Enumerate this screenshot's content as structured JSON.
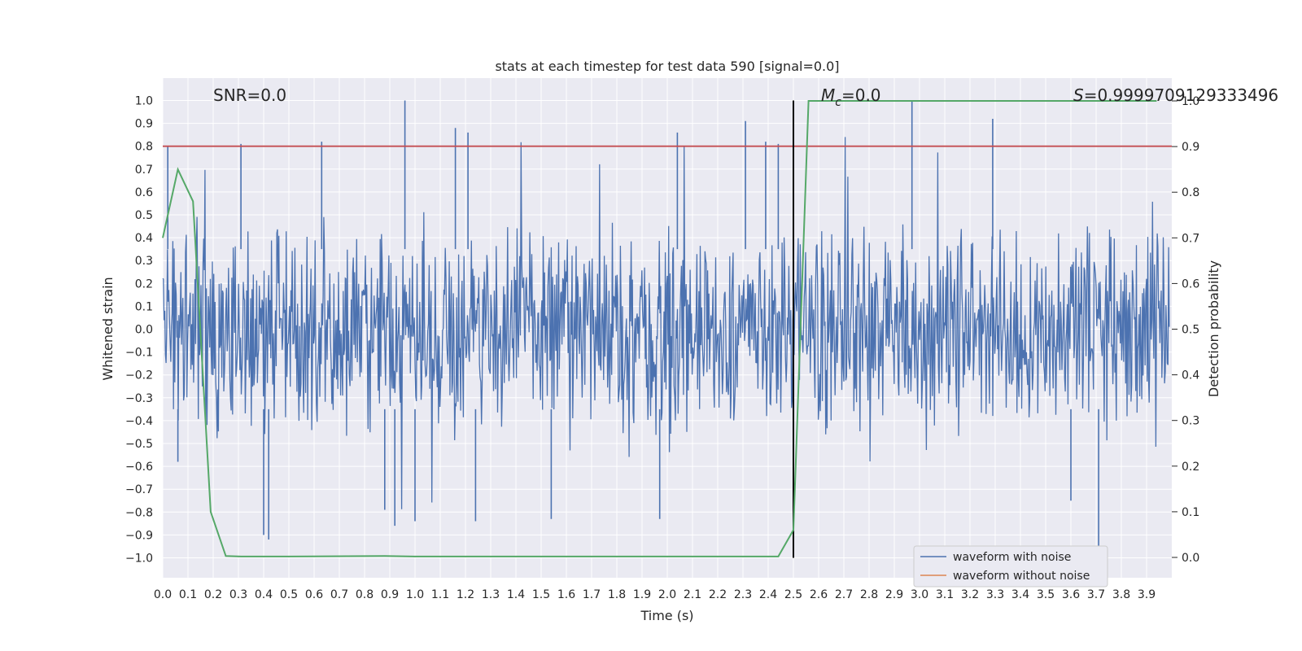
{
  "chart_data": {
    "type": "line",
    "title": "stats at each timestep for test data 590 [signal=0.0]",
    "xlabel": "Time (s)",
    "ylabel_left": "Whitened strain",
    "ylabel_right": "Detection probability",
    "xlim": [
      0.0,
      3.99
    ],
    "ylim_left": [
      -1.1,
      1.1
    ],
    "ylim_right": [
      -0.05,
      1.05
    ],
    "x_ticks": [
      "0.0",
      "0.1",
      "0.2",
      "0.3",
      "0.4",
      "0.5",
      "0.6",
      "0.7",
      "0.8",
      "0.9",
      "1.0",
      "1.1",
      "1.2",
      "1.3",
      "1.4",
      "1.5",
      "1.6",
      "1.7",
      "1.8",
      "1.9",
      "2.0",
      "2.1",
      "2.2",
      "2.3",
      "2.4",
      "2.5",
      "2.6",
      "2.7",
      "2.8",
      "2.9",
      "3.0",
      "3.1",
      "3.2",
      "3.3",
      "3.4",
      "3.5",
      "3.6",
      "3.7",
      "3.8",
      "3.9"
    ],
    "y_left_ticks": [
      "1.0",
      "0.9",
      "0.8",
      "0.7",
      "0.6",
      "0.5",
      "0.4",
      "0.3",
      "0.2",
      "0.1",
      "0.0",
      "−0.1",
      "−0.2",
      "−0.3",
      "−0.4",
      "−0.5",
      "−0.6",
      "−0.7",
      "−0.8",
      "−0.9",
      "−1.0"
    ],
    "y_right_ticks": [
      "1.0",
      "0.9",
      "0.8",
      "0.7",
      "0.6",
      "0.5",
      "0.4",
      "0.3",
      "0.2",
      "0.1",
      "0.0"
    ],
    "grid": true,
    "legend_placement": "lower-right",
    "annotations": {
      "snr": "SNR=0.0",
      "mc_symbol": "M",
      "mc_subscript": "c",
      "mc_value": "=0.0",
      "s_symbol": "S",
      "s_value": "=0.9999709129333496"
    },
    "threshold_left": 0.8,
    "marker_x": 2.5,
    "marker_ylim": [
      -1.0,
      1.0
    ],
    "series": [
      {
        "name": "waveform with noise",
        "color": "#4c72b0",
        "style": "dense noise, mostly within -0.45..0.45 with peaks reaching about ±1.0",
        "peaks": [
          {
            "x": 0.02,
            "y": 0.8
          },
          {
            "x": 0.06,
            "y": -0.58
          },
          {
            "x": 0.31,
            "y": 0.81
          },
          {
            "x": 0.4,
            "y": -0.9
          },
          {
            "x": 0.42,
            "y": -0.92
          },
          {
            "x": 0.63,
            "y": 0.82
          },
          {
            "x": 0.88,
            "y": -0.79
          },
          {
            "x": 0.92,
            "y": -0.86
          },
          {
            "x": 0.96,
            "y": 1.0
          },
          {
            "x": 1.0,
            "y": -0.84
          },
          {
            "x": 1.16,
            "y": 0.88
          },
          {
            "x": 1.21,
            "y": 0.86
          },
          {
            "x": 1.24,
            "y": -0.84
          },
          {
            "x": 1.54,
            "y": -0.83
          },
          {
            "x": 1.97,
            "y": -0.83
          },
          {
            "x": 2.04,
            "y": 0.86
          },
          {
            "x": 2.31,
            "y": 0.91
          },
          {
            "x": 2.39,
            "y": 0.82
          },
          {
            "x": 2.44,
            "y": 0.81
          },
          {
            "x": 2.97,
            "y": 1.0
          },
          {
            "x": 3.29,
            "y": 0.92
          },
          {
            "x": 3.6,
            "y": -0.75
          },
          {
            "x": 3.71,
            "y": -0.99
          }
        ]
      },
      {
        "name": "waveform without noise",
        "color": "#dd8452",
        "values": []
      },
      {
        "name": "detection probability",
        "color": "#55a868",
        "axis": "right",
        "x": [
          0.0,
          0.06,
          0.12,
          0.19,
          0.25,
          0.31,
          0.5,
          0.88,
          1.0,
          1.5,
          2.0,
          2.44,
          2.5,
          2.56,
          2.6,
          3.0,
          3.5,
          3.94
        ],
        "y": [
          0.7,
          0.85,
          0.78,
          0.1,
          0.003,
          0.002,
          0.002,
          0.003,
          0.002,
          0.002,
          0.002,
          0.002,
          0.06,
          1.0,
          1.0,
          1.0,
          1.0,
          1.0
        ]
      }
    ],
    "legend": [
      "waveform with noise",
      "waveform without noise"
    ]
  }
}
